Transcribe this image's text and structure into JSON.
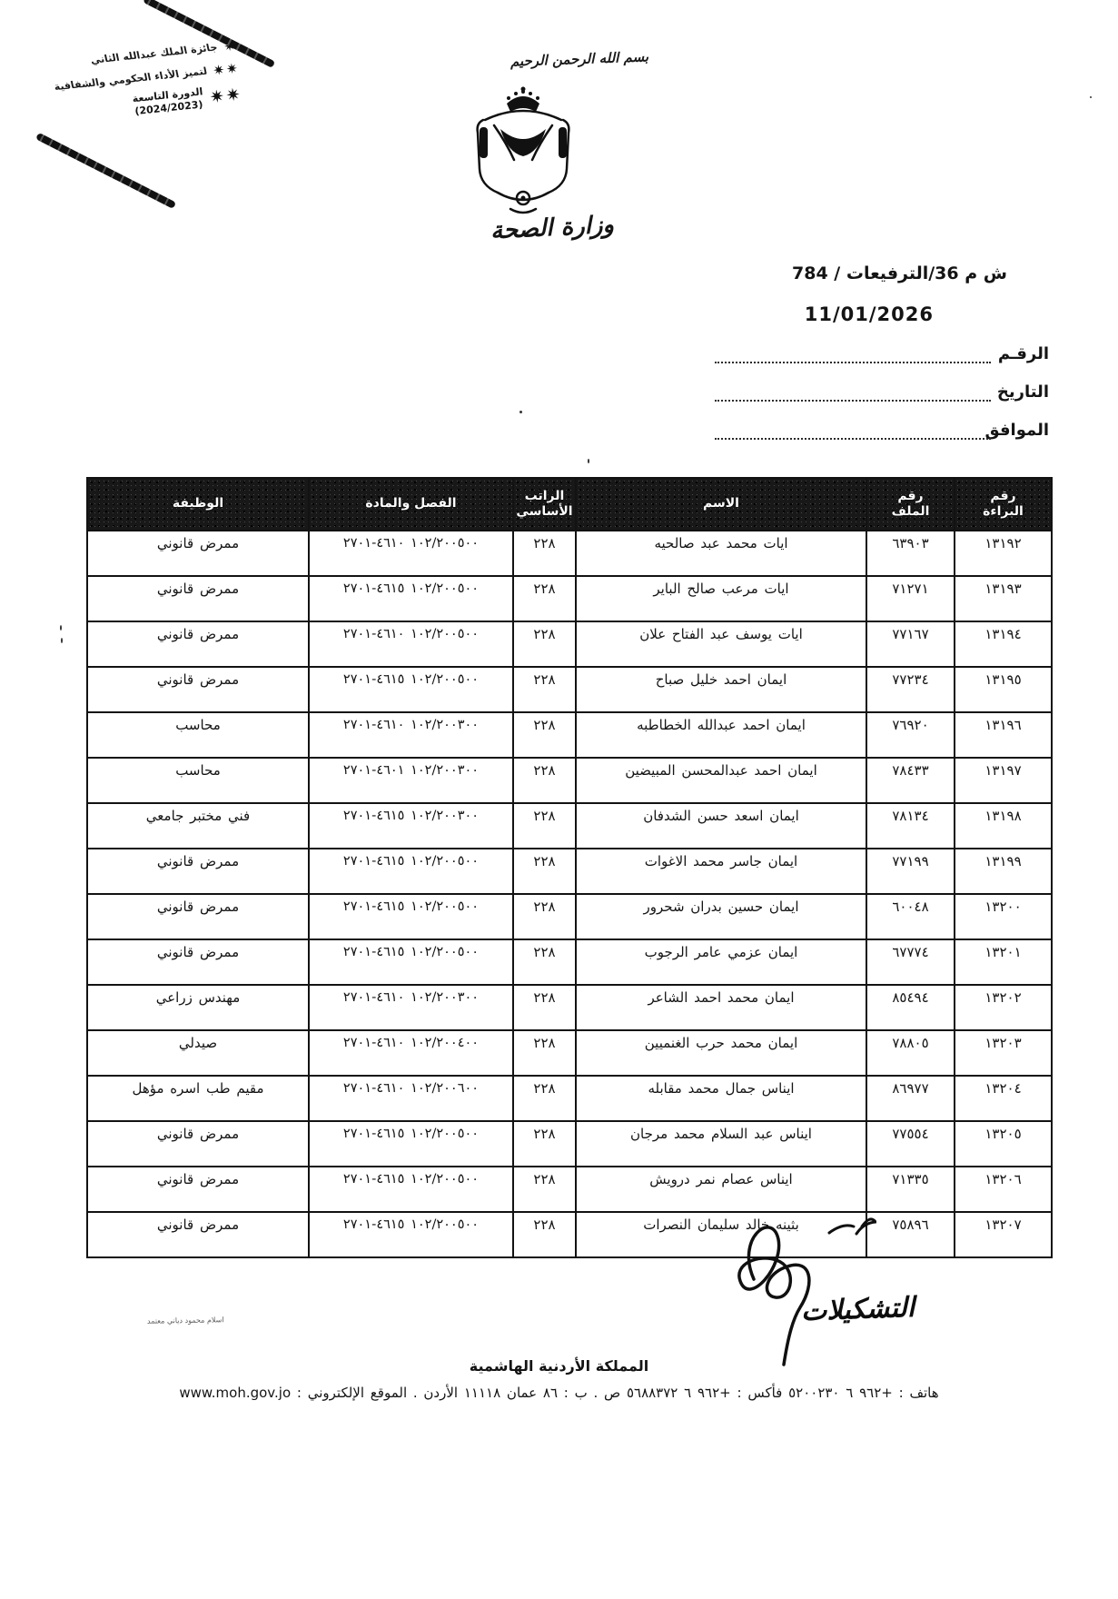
{
  "colors": {
    "ink": "#141414",
    "paper": "#ffffff",
    "table_header_bg": "#181818",
    "table_header_text": "#ffffff"
  },
  "icons": {
    "star": "✷"
  },
  "award_stamp": {
    "line1": "جائزة الملك عبدالله الثاني",
    "line2": "لتميز الأداء الحكومي والشفافية",
    "line3": "الدورة التاسعة",
    "line4": "(2024/2023)"
  },
  "header": {
    "bismillah": "بسم الله الرحمن الرحيم",
    "ministry": "وزارة الصحة"
  },
  "reference": {
    "doc_ref": "ش م 36/الترفيعات / 784",
    "date_value": "11/01/2026",
    "labels": {
      "number": "الرقـم",
      "date": "التاريخ",
      "corresponding": "الموافق"
    }
  },
  "table": {
    "columns": [
      {
        "key": "warrant_no",
        "label": "رقم البراءة",
        "lines": [
          "رقم",
          "البراءة"
        ]
      },
      {
        "key": "file_no",
        "label": "رقم الملف",
        "lines": [
          "رقم",
          "الملف"
        ]
      },
      {
        "key": "name",
        "label": "الاسم",
        "lines": [
          "الاسم"
        ]
      },
      {
        "key": "salary",
        "label": "الراتب الأساسي",
        "lines": [
          "الراتب",
          "الأساسي"
        ]
      },
      {
        "key": "chapter_article",
        "label": "الفصل والمادة",
        "lines": [
          "الفصل والمادة"
        ]
      },
      {
        "key": "position",
        "label": "الوظيفة",
        "lines": [
          "الوظيفة"
        ]
      }
    ],
    "rows": [
      {
        "warrant_no": "١٣١٩٢",
        "file_no": "٦٣٩٠٣",
        "name": "ايات محمد عبد صالحيه",
        "salary": "٢٢٨",
        "chapter_article": "١٠٢/٢٠٠٥٠٠  ٤٦١٠-٢٧٠١",
        "position": "ممرض قانوني"
      },
      {
        "warrant_no": "١٣١٩٣",
        "file_no": "٧١٢٧١",
        "name": "ايات مرعب صالح الباير",
        "salary": "٢٢٨",
        "chapter_article": "١٠٢/٢٠٠٥٠٠  ٤٦١٥-٢٧٠١",
        "position": "ممرض قانوني"
      },
      {
        "warrant_no": "١٣١٩٤",
        "file_no": "٧٧١٦٧",
        "name": "ايات يوسف عبد الفتاح علان",
        "salary": "٢٢٨",
        "chapter_article": "١٠٢/٢٠٠٥٠٠  ٤٦١٠-٢٧٠١",
        "position": "ممرض قانوني"
      },
      {
        "warrant_no": "١٣١٩٥",
        "file_no": "٧٧٢٣٤",
        "name": "ايمان احمد خليل صباح",
        "salary": "٢٢٨",
        "chapter_article": "١٠٢/٢٠٠٥٠٠  ٤٦١٥-٢٧٠١",
        "position": "ممرض قانوني"
      },
      {
        "warrant_no": "١٣١٩٦",
        "file_no": "٧٦٩٢٠",
        "name": "ايمان احمد عبدالله الخطاطبه",
        "salary": "٢٢٨",
        "chapter_article": "١٠٢/٢٠٠٣٠٠  ٤٦١٠-٢٧٠١",
        "position": "محاسب"
      },
      {
        "warrant_no": "١٣١٩٧",
        "file_no": "٧٨٤٣٣",
        "name": "ايمان احمد عبدالمحسن المبيضين",
        "salary": "٢٢٨",
        "chapter_article": "١٠٢/٢٠٠٣٠٠  ٤٦٠١-٢٧٠١",
        "position": "محاسب"
      },
      {
        "warrant_no": "١٣١٩٨",
        "file_no": "٧٨١٣٤",
        "name": "ايمان اسعد حسن الشدفان",
        "salary": "٢٢٨",
        "chapter_article": "١٠٢/٢٠٠٣٠٠  ٤٦١٥-٢٧٠١",
        "position": "فني مختبر جامعي"
      },
      {
        "warrant_no": "١٣١٩٩",
        "file_no": "٧٧١٩٩",
        "name": "ايمان جاسر محمد الاغوات",
        "salary": "٢٢٨",
        "chapter_article": "١٠٢/٢٠٠٥٠٠  ٤٦١٥-٢٧٠١",
        "position": "ممرض قانوني"
      },
      {
        "warrant_no": "١٣٢٠٠",
        "file_no": "٦٠٠٤٨",
        "name": "ايمان حسين بدران شحرور",
        "salary": "٢٢٨",
        "chapter_article": "١٠٢/٢٠٠٥٠٠  ٤٦١٥-٢٧٠١",
        "position": "ممرض قانوني"
      },
      {
        "warrant_no": "١٣٢٠١",
        "file_no": "٦٧٧٧٤",
        "name": "ايمان عزمي عامر الرجوب",
        "salary": "٢٢٨",
        "chapter_article": "١٠٢/٢٠٠٥٠٠  ٤٦١٥-٢٧٠١",
        "position": "ممرض قانوني"
      },
      {
        "warrant_no": "١٣٢٠٢",
        "file_no": "٨٥٤٩٤",
        "name": "ايمان محمد احمد الشاعر",
        "salary": "٢٢٨",
        "chapter_article": "١٠٢/٢٠٠٣٠٠  ٤٦١٠-٢٧٠١",
        "position": "مهندس زراعي"
      },
      {
        "warrant_no": "١٣٢٠٣",
        "file_no": "٧٨٨٠٥",
        "name": "ايمان محمد حرب الغنميين",
        "salary": "٢٢٨",
        "chapter_article": "١٠٢/٢٠٠٤٠٠  ٤٦١٠-٢٧٠١",
        "position": "صيدلي"
      },
      {
        "warrant_no": "١٣٢٠٤",
        "file_no": "٨٦٩٧٧",
        "name": "ايناس جمال محمد مقابله",
        "salary": "٢٢٨",
        "chapter_article": "١٠٢/٢٠٠٦٠٠  ٤٦١٠-٢٧٠١",
        "position": "مقيم طب اسره مؤهل"
      },
      {
        "warrant_no": "١٣٢٠٥",
        "file_no": "٧٧٥٥٤",
        "name": "ايناس عبد السلام محمد مرجان",
        "salary": "٢٢٨",
        "chapter_article": "١٠٢/٢٠٠٥٠٠  ٤٦١٥-٢٧٠١",
        "position": "ممرض قانوني"
      },
      {
        "warrant_no": "١٣٢٠٦",
        "file_no": "٧١٣٣٥",
        "name": "ايناس عصام نمر درويش",
        "salary": "٢٢٨",
        "chapter_article": "١٠٢/٢٠٠٥٠٠  ٤٦١٥-٢٧٠١",
        "position": "ممرض قانوني"
      },
      {
        "warrant_no": "١٣٢٠٧",
        "file_no": "٧٥٨٩٦",
        "name": "بثينه خالد سليمان النصرات",
        "salary": "٢٢٨",
        "chapter_article": "١٠٢/٢٠٠٥٠٠  ٤٦١٥-٢٧٠١",
        "position": "ممرض قانوني"
      }
    ]
  },
  "annotations": {
    "handwritten_word": "التشكيلات",
    "micro_note": "اسلام محمود دياني معتمد"
  },
  "footer": {
    "kingdom": "المملكة الأردنية الهاشمية",
    "contact": "هاتف : +٩٦٢ ٦ ٥٢٠٠٢٣٠ فأكس : +٩٦٢ ٦ ٥٦٨٨٣٧٢ ص . ب : ٨٦ عمان ١١١١٨ الأردن . الموقع الإلكتروني : www.moh.gov.jo"
  }
}
